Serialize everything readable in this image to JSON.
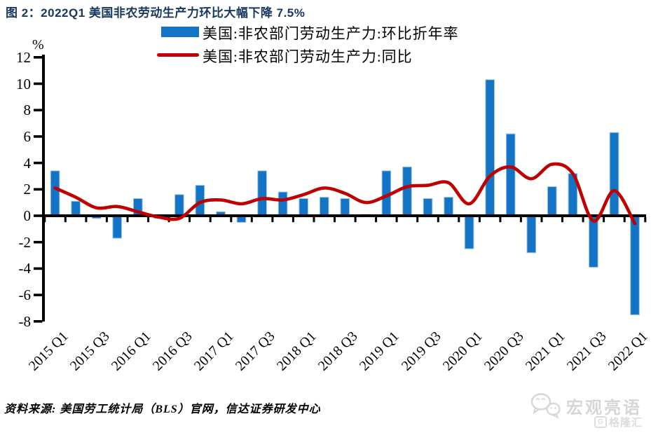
{
  "title": "图 2：2022Q1 美国非农劳动生产力环比大幅下降 7.5%",
  "colors": {
    "title_navy": "#17375E",
    "bar_blue": "#1373C4",
    "bar_border": "#9CC3E5",
    "line_red": "#C00000",
    "axis_black": "#000000",
    "watermark_gray": "#D6D6D6"
  },
  "legend": {
    "items": [
      {
        "label": "美国:非农部门劳动生产力:环比折年率",
        "type": "bar"
      },
      {
        "label": "美国:非农部门劳动生产力:同比",
        "type": "line"
      }
    ]
  },
  "y_axis": {
    "unit_label": "%",
    "ticks": [
      12,
      10,
      8,
      6,
      4,
      2,
      0,
      -2,
      -4,
      -6,
      -8
    ]
  },
  "x_axis": {
    "shown_tick_labels": [
      "2015 Q1",
      "2015 Q3",
      "2016 Q1",
      "2016 Q3",
      "2017 Q1",
      "2017 Q3",
      "2018 Q1",
      "2018 Q3",
      "2019 Q1",
      "2019 Q3",
      "2020 Q1",
      "2020 Q3",
      "2021 Q1",
      "2021 Q3",
      "2022 Q1"
    ]
  },
  "chart_data": {
    "type": "bar",
    "title": "图 2：2022Q1 美国非农劳动生产力环比大幅下降 7.5%",
    "xlabel": "",
    "ylabel": "%",
    "ylim": [
      -8,
      12
    ],
    "grid": false,
    "legend_position": "top",
    "categories": [
      "2015 Q1",
      "2015 Q2",
      "2015 Q3",
      "2015 Q4",
      "2016 Q1",
      "2016 Q2",
      "2016 Q3",
      "2016 Q4",
      "2017 Q1",
      "2017 Q2",
      "2017 Q3",
      "2017 Q4",
      "2018 Q1",
      "2018 Q2",
      "2018 Q3",
      "2018 Q4",
      "2019 Q1",
      "2019 Q2",
      "2019 Q3",
      "2019 Q4",
      "2020 Q1",
      "2020 Q2",
      "2020 Q3",
      "2020 Q4",
      "2021 Q1",
      "2021 Q2",
      "2021 Q3",
      "2021 Q4",
      "2022 Q1"
    ],
    "series": [
      {
        "name": "美国:非农部门劳动生产力:环比折年率",
        "type": "bar",
        "values": [
          3.4,
          1.1,
          -0.2,
          -1.7,
          1.3,
          -0.2,
          1.6,
          2.3,
          0.3,
          -0.5,
          3.4,
          1.8,
          1.3,
          1.4,
          1.3,
          0.1,
          3.4,
          3.7,
          1.3,
          1.4,
          -2.5,
          10.3,
          6.2,
          -2.8,
          2.2,
          3.2,
          -3.9,
          6.3,
          -7.5
        ]
      },
      {
        "name": "美国:非农部门劳动生产力:同比",
        "type": "line",
        "values": [
          2.1,
          1.4,
          0.6,
          0.7,
          0.3,
          -0.1,
          -0.2,
          1.0,
          1.2,
          0.9,
          1.3,
          1.2,
          1.6,
          2.1,
          1.7,
          1.0,
          1.5,
          2.2,
          2.3,
          2.5,
          0.9,
          3.0,
          3.7,
          2.8,
          3.9,
          3.2,
          -0.4,
          1.9,
          -0.6
        ]
      }
    ]
  },
  "footer": {
    "source": "资料来源: 美国劳工统计局（BLS）官网，信达证券研发中心"
  },
  "watermark": {
    "brand": "宏观亮语",
    "logo_letter": "G",
    "logo_text": "格隆汇"
  }
}
